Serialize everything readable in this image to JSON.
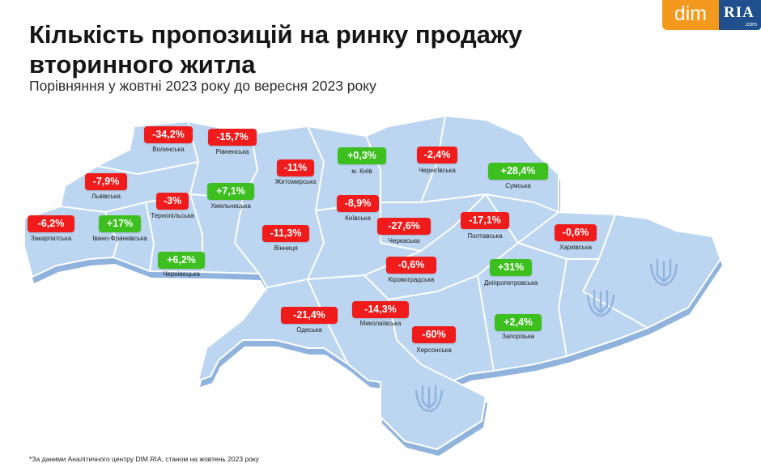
{
  "title": "Кількість пропозицій на ринку продажу\nвторинного житла",
  "subtitle": "Порівняння у жовтні 2023 року до вересня 2023 року",
  "logo": {
    "dim": "dim",
    "ria": "RIA",
    "com": ".com"
  },
  "footnote": "*За даними Аналітичного центру DIM.RIA, станом на жовтень 2023 року",
  "colors": {
    "decrease": "#f01b1b",
    "increase": "#3cbf1f",
    "map_fill": "#bcd6f1",
    "map_side": "#8fb3dd",
    "border": "#ffffff"
  },
  "regions": [
    {
      "name": "Волинська",
      "change": "-34,2%",
      "trend": "down"
    },
    {
      "name": "Рівненська",
      "change": "-15,7%",
      "trend": "down"
    },
    {
      "name": "Житомирська",
      "change": "-11%",
      "trend": "down"
    },
    {
      "name": "м. Київ",
      "change": "+0,3%",
      "trend": "up"
    },
    {
      "name": "Чернігівська",
      "change": "-2,4%",
      "trend": "down"
    },
    {
      "name": "Сумська",
      "change": "+28,4%",
      "trend": "up"
    },
    {
      "name": "Львівська",
      "change": "-7,9%",
      "trend": "down"
    },
    {
      "name": "Тернопільська",
      "change": "-3%",
      "trend": "down"
    },
    {
      "name": "Хмельницька",
      "change": "+7,1%",
      "trend": "up"
    },
    {
      "name": "Київська",
      "change": "-8,9%",
      "trend": "down"
    },
    {
      "name": "Полтавська",
      "change": "-17,1%",
      "trend": "down"
    },
    {
      "name": "Харківська",
      "change": "-0,6%",
      "trend": "down"
    },
    {
      "name": "Закарпатська",
      "change": "-6,2%",
      "trend": "down"
    },
    {
      "name": "Івано-Франківська",
      "change": "+17%",
      "trend": "up"
    },
    {
      "name": "Вінниця",
      "change": "-11,3%",
      "trend": "down"
    },
    {
      "name": "Черкаська",
      "change": "-27,6%",
      "trend": "down"
    },
    {
      "name": "Чернівецька",
      "change": "+6,2%",
      "trend": "up"
    },
    {
      "name": "Кіровоградська",
      "change": "-0,6%",
      "trend": "down"
    },
    {
      "name": "Дніпропетровська",
      "change": "+31%",
      "trend": "up"
    },
    {
      "name": "Одеська",
      "change": "-21,4%",
      "trend": "down"
    },
    {
      "name": "Миколаївська",
      "change": "-14,3%",
      "trend": "down"
    },
    {
      "name": "Херсонська",
      "change": "-60%",
      "trend": "down"
    },
    {
      "name": "Запорізька",
      "change": "+2,4%",
      "trend": "up"
    }
  ]
}
